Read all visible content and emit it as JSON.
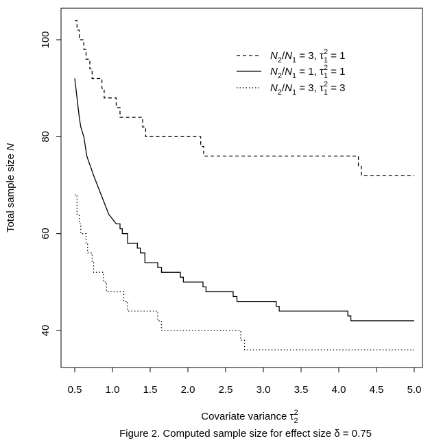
{
  "chart_data": {
    "type": "line",
    "title": "",
    "caption": "Figure 2. Computed sample size for effect size δ = 0.75",
    "xlabel": "Covariate variance τ₂²",
    "ylabel": "Total sample size N",
    "xlim": [
      0.5,
      5.0
    ],
    "ylim": [
      34,
      106
    ],
    "x_ticks": [
      0.5,
      1.0,
      1.5,
      2.0,
      2.5,
      3.0,
      3.5,
      4.0,
      4.5,
      5.0
    ],
    "x_tick_labels": [
      "0.5",
      "1.0",
      "1.5",
      "2.0",
      "2.5",
      "3.0",
      "3.5",
      "4.0",
      "4.5",
      "5.0"
    ],
    "y_ticks": [
      40,
      60,
      80,
      100
    ],
    "y_tick_labels": [
      "40",
      "60",
      "80",
      "100"
    ],
    "grid": false,
    "legend_position": "top-right",
    "series": [
      {
        "name": "N2/N1 = 3, τ1² = 1",
        "line_style": "dashed",
        "points": [
          [
            0.5,
            104
          ],
          [
            0.53,
            104
          ],
          [
            0.53,
            102
          ],
          [
            0.56,
            102
          ],
          [
            0.56,
            100
          ],
          [
            0.62,
            100
          ],
          [
            0.62,
            98
          ],
          [
            0.65,
            98
          ],
          [
            0.65,
            96
          ],
          [
            0.7,
            96
          ],
          [
            0.7,
            94
          ],
          [
            0.73,
            94
          ],
          [
            0.73,
            92
          ],
          [
            0.86,
            92
          ],
          [
            0.86,
            90
          ],
          [
            0.89,
            90
          ],
          [
            0.89,
            88
          ],
          [
            1.05,
            88
          ],
          [
            1.05,
            86
          ],
          [
            1.1,
            86
          ],
          [
            1.1,
            84
          ],
          [
            1.4,
            84
          ],
          [
            1.4,
            82
          ],
          [
            1.44,
            82
          ],
          [
            1.44,
            80
          ],
          [
            2.17,
            80
          ],
          [
            2.17,
            78
          ],
          [
            2.21,
            78
          ],
          [
            2.21,
            76
          ],
          [
            4.26,
            76
          ],
          [
            4.26,
            74
          ],
          [
            4.3,
            74
          ],
          [
            4.3,
            72
          ],
          [
            5.0,
            72
          ]
        ]
      },
      {
        "name": "N2/N1 = 1, τ1² = 1",
        "line_style": "solid",
        "points": [
          [
            0.5,
            92
          ],
          [
            0.53,
            88
          ],
          [
            0.56,
            84
          ],
          [
            0.58,
            82
          ],
          [
            0.62,
            80
          ],
          [
            0.66,
            76
          ],
          [
            0.75,
            72
          ],
          [
            0.85,
            68
          ],
          [
            0.95,
            64
          ],
          [
            1.05,
            62
          ],
          [
            1.1,
            62
          ],
          [
            1.1,
            61
          ],
          [
            1.13,
            61
          ],
          [
            1.13,
            60
          ],
          [
            1.2,
            60
          ],
          [
            1.2,
            58
          ],
          [
            1.33,
            58
          ],
          [
            1.33,
            57
          ],
          [
            1.37,
            57
          ],
          [
            1.37,
            56
          ],
          [
            1.43,
            56
          ],
          [
            1.43,
            54
          ],
          [
            1.6,
            54
          ],
          [
            1.6,
            53
          ],
          [
            1.65,
            53
          ],
          [
            1.65,
            52
          ],
          [
            1.9,
            52
          ],
          [
            1.9,
            51
          ],
          [
            1.94,
            51
          ],
          [
            1.94,
            50
          ],
          [
            2.2,
            50
          ],
          [
            2.2,
            49
          ],
          [
            2.24,
            49
          ],
          [
            2.24,
            48
          ],
          [
            2.6,
            48
          ],
          [
            2.6,
            47
          ],
          [
            2.65,
            47
          ],
          [
            2.65,
            46
          ],
          [
            3.17,
            46
          ],
          [
            3.17,
            45
          ],
          [
            3.21,
            45
          ],
          [
            3.21,
            44
          ],
          [
            4.12,
            44
          ],
          [
            4.12,
            43
          ],
          [
            4.16,
            43
          ],
          [
            4.16,
            42
          ],
          [
            5.0,
            42
          ]
        ]
      },
      {
        "name": "N2/N1 = 3, τ1² = 3",
        "line_style": "dotted",
        "points": [
          [
            0.5,
            68
          ],
          [
            0.53,
            68
          ],
          [
            0.53,
            64
          ],
          [
            0.56,
            64
          ],
          [
            0.56,
            62
          ],
          [
            0.58,
            62
          ],
          [
            0.58,
            60
          ],
          [
            0.65,
            60
          ],
          [
            0.65,
            58
          ],
          [
            0.67,
            58
          ],
          [
            0.67,
            56
          ],
          [
            0.73,
            56
          ],
          [
            0.73,
            54
          ],
          [
            0.75,
            54
          ],
          [
            0.75,
            52
          ],
          [
            0.88,
            52
          ],
          [
            0.88,
            50
          ],
          [
            0.92,
            50
          ],
          [
            0.92,
            48
          ],
          [
            1.15,
            48
          ],
          [
            1.15,
            46
          ],
          [
            1.2,
            46
          ],
          [
            1.2,
            44
          ],
          [
            1.6,
            44
          ],
          [
            1.6,
            42
          ],
          [
            1.65,
            42
          ],
          [
            1.65,
            40
          ],
          [
            2.7,
            40
          ],
          [
            2.7,
            38
          ],
          [
            2.75,
            38
          ],
          [
            2.75,
            36
          ],
          [
            5.0,
            36
          ]
        ]
      }
    ]
  }
}
